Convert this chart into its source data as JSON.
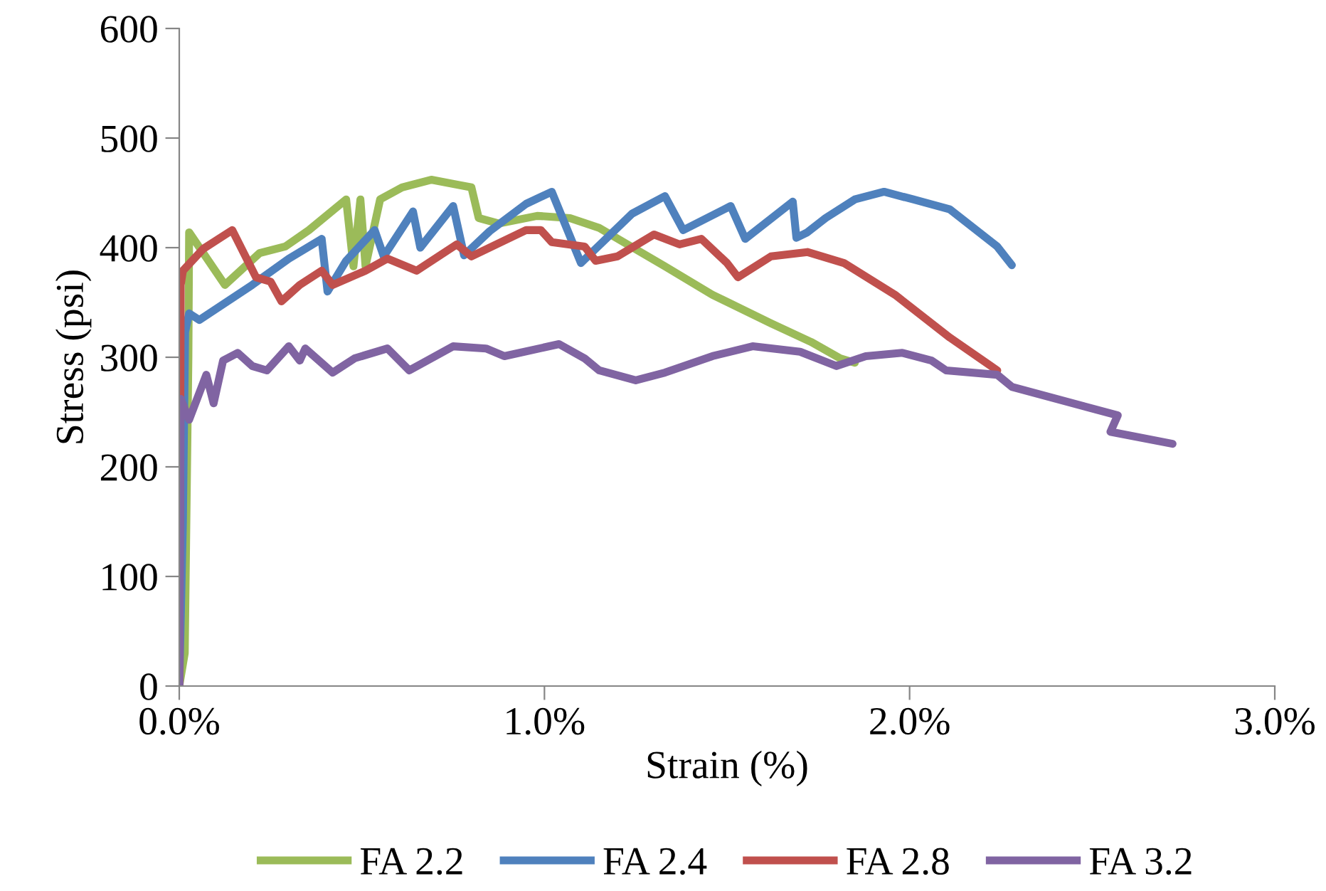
{
  "chart_data": {
    "type": "line",
    "xlabel": "Strain (%)",
    "ylabel": "Stress (psi)",
    "xlim": [
      0,
      3
    ],
    "xticks": [
      {
        "value": 0,
        "label": "0.0%"
      },
      {
        "value": 1,
        "label": "1.0%"
      },
      {
        "value": 2,
        "label": "2.0%"
      },
      {
        "value": 3,
        "label": "3.0%"
      }
    ],
    "ylim": [
      0,
      600
    ],
    "yticks": [
      0,
      100,
      200,
      300,
      400,
      500,
      600
    ],
    "grid": false,
    "legend": "bottom",
    "marker": "none",
    "line_style": "solid",
    "series": [
      {
        "name": "FA 2.2",
        "color": "#9bbb59",
        "x": [
          0,
          0.015,
          0.025,
          0.027,
          0.125,
          0.22,
          0.29,
          0.355,
          0.457,
          0.477,
          0.496,
          0.51,
          0.55,
          0.61,
          0.69,
          0.8,
          0.82,
          0.875,
          0.98,
          1.07,
          1.15,
          1.33,
          1.46,
          1.62,
          1.73,
          1.81,
          1.85
        ],
        "values": [
          0,
          30,
          300,
          414,
          366,
          395,
          401,
          416,
          444,
          383,
          444,
          383,
          444,
          455,
          462,
          455,
          427,
          422,
          429,
          427,
          418,
          383,
          357,
          331,
          314,
          299,
          295
        ]
      },
      {
        "name": "FA 2.4",
        "color": "#4f81bd",
        "x": [
          0,
          0.01,
          0.016,
          0.027,
          0.055,
          0.2,
          0.3,
          0.39,
          0.406,
          0.457,
          0.535,
          0.56,
          0.64,
          0.66,
          0.75,
          0.78,
          0.85,
          0.95,
          1.02,
          1.1,
          1.24,
          1.33,
          1.38,
          1.51,
          1.55,
          1.68,
          1.69,
          1.72,
          1.77,
          1.85,
          1.93,
          2.01,
          2.11,
          2.24,
          2.28
        ],
        "values": [
          0,
          150,
          323,
          340,
          334,
          366,
          390,
          408,
          360,
          388,
          416,
          392,
          433,
          400,
          438,
          393,
          415,
          440,
          451,
          386,
          431,
          447,
          416,
          438,
          408,
          442,
          409,
          414,
          427,
          444,
          451,
          444,
          435,
          401,
          384
        ]
      },
      {
        "name": "FA 2.8",
        "color": "#c0504d",
        "x": [
          0,
          0.003,
          0.004,
          0.01,
          0.066,
          0.145,
          0.21,
          0.25,
          0.28,
          0.33,
          0.39,
          0.42,
          0.51,
          0.57,
          0.65,
          0.76,
          0.8,
          0.95,
          0.99,
          1.02,
          1.11,
          1.14,
          1.2,
          1.3,
          1.37,
          1.43,
          1.5,
          1.53,
          1.62,
          1.72,
          1.82,
          1.96,
          2.11,
          2.24
        ],
        "values": [
          0,
          270,
          366,
          379,
          399,
          416,
          373,
          369,
          351,
          366,
          379,
          366,
          379,
          390,
          379,
          403,
          392,
          416,
          416,
          405,
          401,
          388,
          392,
          412,
          403,
          408,
          386,
          373,
          392,
          396,
          386,
          357,
          318,
          288
        ]
      },
      {
        "name": "FA 3.2",
        "color": "#8064a2",
        "x": [
          0,
          0.002,
          0.004,
          0.027,
          0.074,
          0.094,
          0.12,
          0.16,
          0.2,
          0.24,
          0.3,
          0.33,
          0.345,
          0.42,
          0.48,
          0.57,
          0.63,
          0.75,
          0.84,
          0.89,
          1.04,
          1.11,
          1.15,
          1.25,
          1.33,
          1.46,
          1.57,
          1.7,
          1.8,
          1.88,
          1.98,
          2.06,
          2.1,
          2.24,
          2.28,
          2.57,
          2.55,
          2.72
        ],
        "values": [
          0,
          150,
          262,
          243,
          284,
          258,
          297,
          304,
          292,
          288,
          310,
          297,
          308,
          286,
          299,
          308,
          288,
          310,
          308,
          301,
          312,
          299,
          288,
          279,
          286,
          301,
          310,
          305,
          292,
          301,
          304,
          297,
          288,
          284,
          273,
          247,
          232,
          221
        ]
      }
    ]
  }
}
